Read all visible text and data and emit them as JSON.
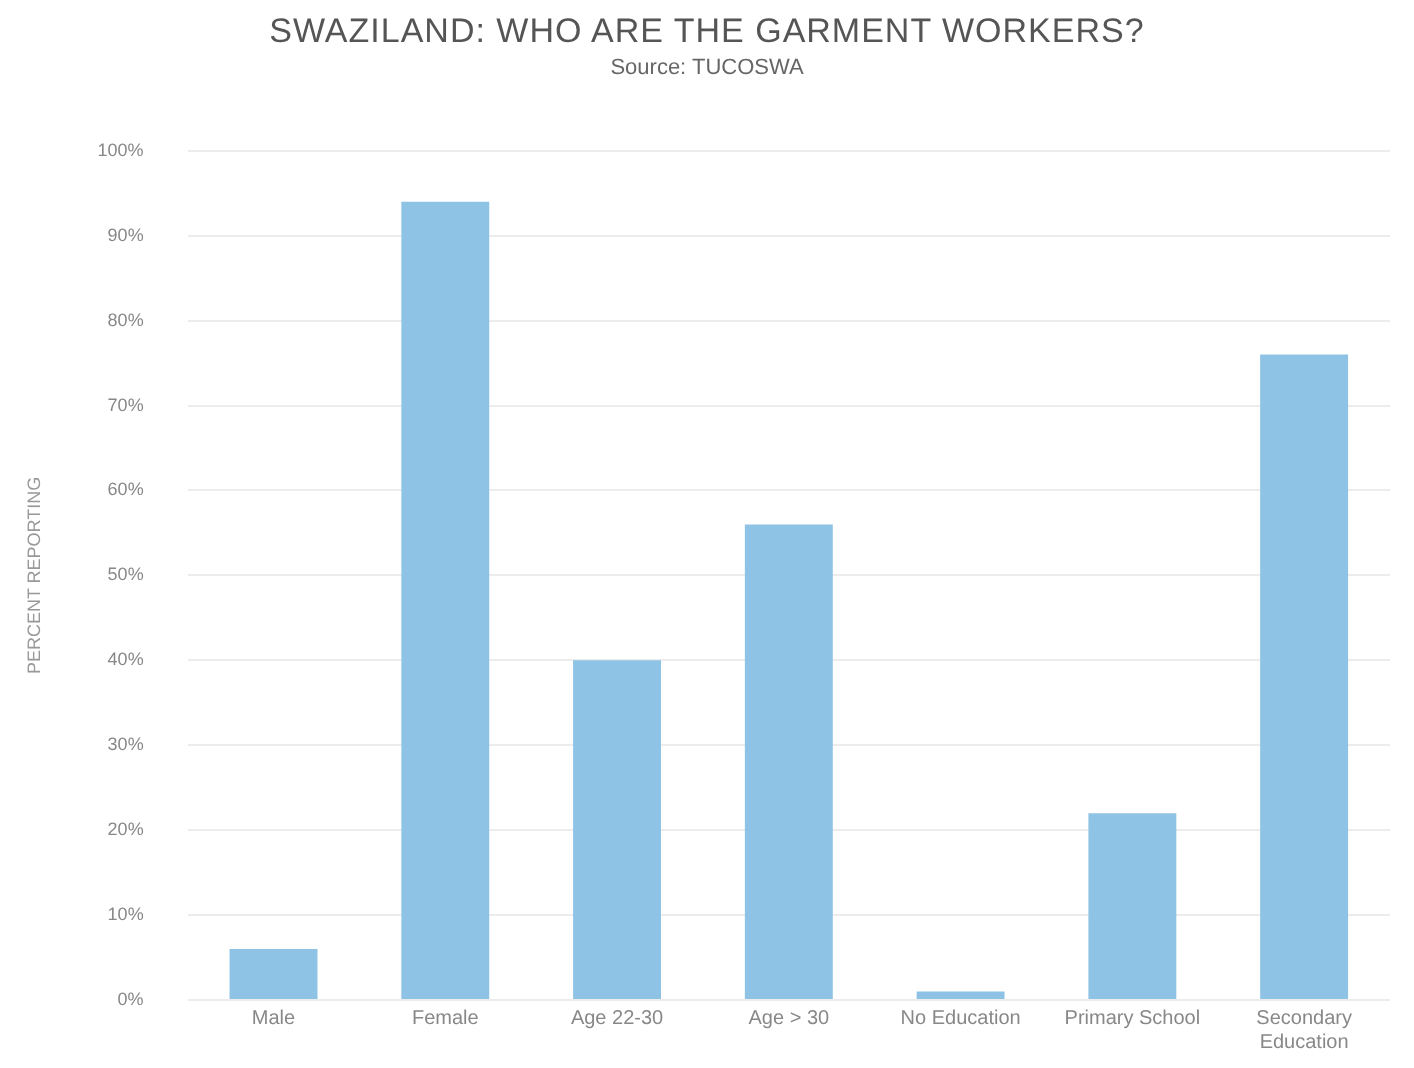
{
  "chart_data": {
    "type": "bar",
    "title": "SWAZILAND: WHO ARE THE GARMENT WORKERS?",
    "subtitle": "Source: TUCOSWA",
    "ylabel": "PERCENT REPORTING",
    "categories": [
      "Male",
      "Female",
      "Age 22-30",
      "Age > 30",
      "No Education",
      "Primary School",
      "Secondary Education"
    ],
    "values": [
      6,
      94,
      40,
      56,
      1,
      22,
      76
    ],
    "color": "#8ec3e6",
    "ylim": [
      0,
      100
    ],
    "yticks": [
      {
        "value": 0,
        "label": "0%"
      },
      {
        "value": 10,
        "label": "10%"
      },
      {
        "value": 20,
        "label": "20%"
      },
      {
        "value": 30,
        "label": "30%"
      },
      {
        "value": 40,
        "label": "40%"
      },
      {
        "value": 50,
        "label": "50%"
      },
      {
        "value": 60,
        "label": "60%"
      },
      {
        "value": 70,
        "label": "70%"
      },
      {
        "value": 80,
        "label": "80%"
      },
      {
        "value": 90,
        "label": "90%"
      },
      {
        "value": 100,
        "label": "100%"
      }
    ],
    "grid": "y",
    "legend": false
  }
}
